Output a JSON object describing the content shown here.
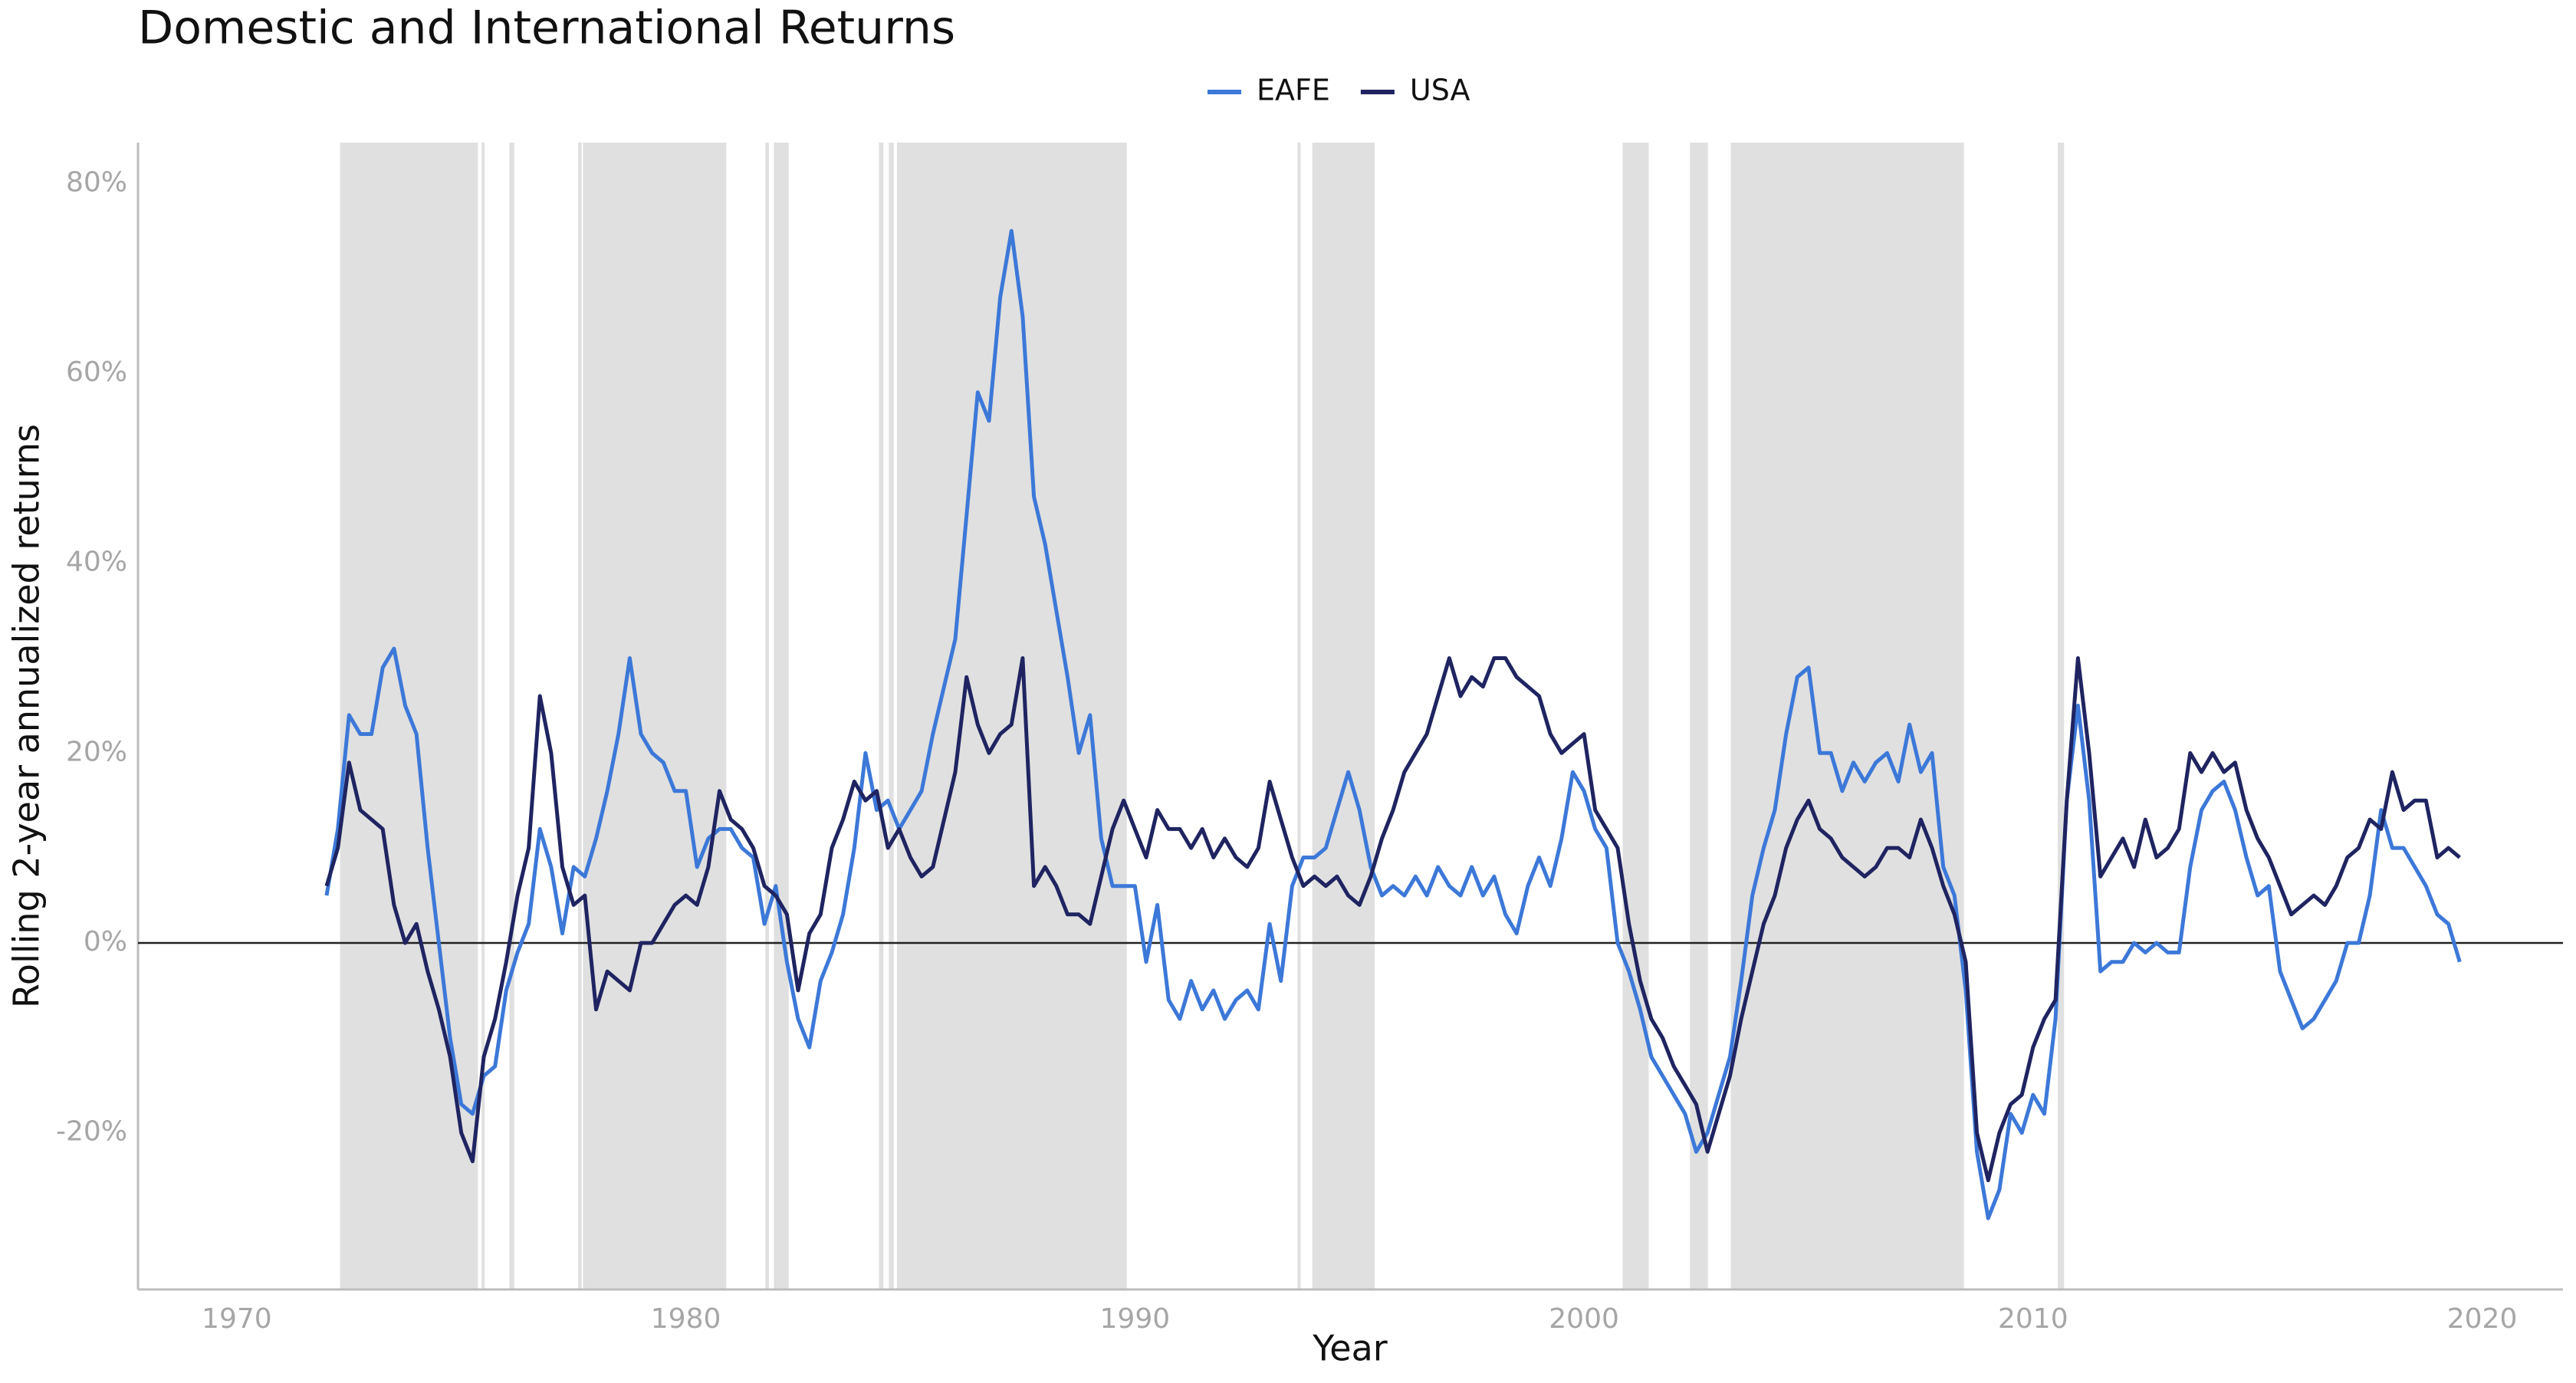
{
  "chart_data": {
    "type": "line",
    "title": "Domestic and International Returns",
    "x_label": "Year",
    "y_label": "Rolling 2-year annualized returns",
    "xlim": [
      1967.8,
      2021.8
    ],
    "xticks": [
      1970,
      1980,
      1990,
      2000,
      2010,
      2020
    ],
    "ylim": [
      -36.5,
      84.3
    ],
    "yticks": [
      {
        "value": -20,
        "label": "-20%"
      },
      {
        "value": 0,
        "label": "0%"
      },
      {
        "value": 20,
        "label": "20%"
      },
      {
        "value": 40,
        "label": "40%"
      },
      {
        "value": 60,
        "label": "60%"
      },
      {
        "value": 80,
        "label": "80%"
      }
    ],
    "grid": false,
    "legend": "top",
    "reference_line": 0,
    "shaded_color": "#e0e0e0",
    "shaded_periods": [
      [
        1972.3,
        1975.37
      ],
      [
        1975.45,
        1975.52
      ],
      [
        1976.07,
        1976.18
      ],
      [
        1977.6,
        1977.68
      ],
      [
        1977.71,
        1980.9
      ],
      [
        1981.77,
        1981.85
      ],
      [
        1981.96,
        1982.29
      ],
      [
        1984.3,
        1984.4
      ],
      [
        1984.52,
        1984.63
      ],
      [
        1984.7,
        1989.82
      ],
      [
        1993.62,
        1993.69
      ],
      [
        1993.95,
        1995.34
      ],
      [
        2000.86,
        2001.44
      ],
      [
        2002.36,
        2002.76
      ],
      [
        2003.27,
        2008.46
      ],
      [
        2010.55,
        2010.69
      ]
    ],
    "x": [
      1972.0,
      1972.25,
      1972.5,
      1972.75,
      1973.0,
      1973.25,
      1973.5,
      1973.75,
      1974.0,
      1974.25,
      1974.5,
      1974.75,
      1975.0,
      1975.25,
      1975.5,
      1975.75,
      1976.0,
      1976.25,
      1976.5,
      1976.75,
      1977.0,
      1977.25,
      1977.5,
      1977.75,
      1978.0,
      1978.25,
      1978.5,
      1978.75,
      1979.0,
      1979.25,
      1979.5,
      1979.75,
      1980.0,
      1980.25,
      1980.5,
      1980.75,
      1981.0,
      1981.25,
      1981.5,
      1981.75,
      1982.0,
      1982.25,
      1982.5,
      1982.75,
      1983.0,
      1983.25,
      1983.5,
      1983.75,
      1984.0,
      1984.25,
      1984.5,
      1984.75,
      1985.0,
      1985.25,
      1985.5,
      1985.75,
      1986.0,
      1986.25,
      1986.5,
      1986.75,
      1987.0,
      1987.25,
      1987.5,
      1987.75,
      1988.0,
      1988.25,
      1988.5,
      1988.75,
      1989.0,
      1989.25,
      1989.5,
      1989.75,
      1990.0,
      1990.25,
      1990.5,
      1990.75,
      1991.0,
      1991.25,
      1991.5,
      1991.75,
      1992.0,
      1992.25,
      1992.5,
      1992.75,
      1993.0,
      1993.25,
      1993.5,
      1993.75,
      1994.0,
      1994.25,
      1994.5,
      1994.75,
      1995.0,
      1995.25,
      1995.5,
      1995.75,
      1996.0,
      1996.25,
      1996.5,
      1996.75,
      1997.0,
      1997.25,
      1997.5,
      1997.75,
      1998.0,
      1998.25,
      1998.5,
      1998.75,
      1999.0,
      1999.25,
      1999.5,
      1999.75,
      2000.0,
      2000.25,
      2000.5,
      2000.75,
      2001.0,
      2001.25,
      2001.5,
      2001.75,
      2002.0,
      2002.25,
      2002.5,
      2002.75,
      2003.0,
      2003.25,
      2003.5,
      2003.75,
      2004.0,
      2004.25,
      2004.5,
      2004.75,
      2005.0,
      2005.25,
      2005.5,
      2005.75,
      2006.0,
      2006.25,
      2006.5,
      2006.75,
      2007.0,
      2007.25,
      2007.5,
      2007.75,
      2008.0,
      2008.25,
      2008.5,
      2008.75,
      2009.0,
      2009.25,
      2009.5,
      2009.75,
      2010.0,
      2010.25,
      2010.5,
      2010.75,
      2011.0,
      2011.25,
      2011.5,
      2011.75,
      2012.0,
      2012.25,
      2012.5,
      2012.75,
      2013.0,
      2013.25,
      2013.5,
      2013.75,
      2014.0,
      2014.25,
      2014.5,
      2014.75,
      2015.0,
      2015.25,
      2015.5,
      2015.75,
      2016.0,
      2016.25,
      2016.5,
      2016.75,
      2017.0,
      2017.25,
      2017.5,
      2017.75,
      2018.0,
      2018.25,
      2018.5,
      2018.75,
      2019.0,
      2019.25,
      2019.5
    ],
    "series": [
      {
        "name": "EAFE",
        "color": "#3c78d8",
        "values": [
          5,
          12,
          24,
          22,
          22,
          29,
          31,
          25,
          22,
          10,
          0,
          -10,
          -17,
          -18,
          -14,
          -13,
          -5,
          -1,
          2,
          12,
          8,
          1,
          8,
          7,
          11,
          16,
          22,
          30,
          22,
          20,
          19,
          16,
          16,
          8,
          11,
          12,
          12,
          10,
          9,
          2,
          6,
          -2,
          -8,
          -11,
          -4,
          -1,
          3,
          10,
          20,
          14,
          15,
          12,
          14,
          16,
          22,
          27,
          32,
          45,
          58,
          55,
          68,
          75,
          66,
          47,
          42,
          35,
          28,
          20,
          24,
          11,
          6,
          6,
          6,
          -2,
          4,
          -6,
          -8,
          -4,
          -7,
          -5,
          -8,
          -6,
          -5,
          -7,
          2,
          -4,
          6,
          9,
          9,
          10,
          14,
          18,
          14,
          8,
          5,
          6,
          5,
          7,
          5,
          8,
          6,
          5,
          8,
          5,
          7,
          3,
          1,
          6,
          9,
          6,
          11,
          18,
          16,
          12,
          10,
          0,
          -3,
          -7,
          -12,
          -14,
          -16,
          -18,
          -22,
          -20,
          -16,
          -12,
          -4,
          5,
          10,
          14,
          22,
          28,
          29,
          20,
          20,
          16,
          19,
          17,
          19,
          20,
          17,
          23,
          18,
          20,
          8,
          5,
          -5,
          -22,
          -29,
          -26,
          -18,
          -20,
          -16,
          -18,
          -8,
          15,
          25,
          15,
          -3,
          -2,
          -2,
          0,
          -1,
          0,
          -1,
          -1,
          8,
          14,
          16,
          17,
          14,
          9,
          5,
          6,
          -3,
          -6,
          -9,
          -8,
          -6,
          -4,
          0,
          0,
          5,
          14,
          10,
          10,
          8,
          6,
          3,
          2,
          -2
        ]
      },
      {
        "name": "USA",
        "color": "#1f2461",
        "values": [
          6,
          10,
          19,
          14,
          13,
          12,
          4,
          0,
          2,
          -3,
          -7,
          -12,
          -20,
          -23,
          -12,
          -8,
          -2,
          5,
          10,
          26,
          20,
          8,
          4,
          5,
          -7,
          -3,
          -4,
          -5,
          0,
          0,
          2,
          4,
          5,
          4,
          8,
          16,
          13,
          12,
          10,
          6,
          5,
          3,
          -5,
          1,
          3,
          10,
          13,
          17,
          15,
          16,
          10,
          12,
          9,
          7,
          8,
          13,
          18,
          28,
          23,
          20,
          22,
          23,
          30,
          6,
          8,
          6,
          3,
          3,
          2,
          7,
          12,
          15,
          12,
          9,
          14,
          12,
          12,
          10,
          12,
          9,
          11,
          9,
          8,
          10,
          17,
          13,
          9,
          6,
          7,
          6,
          7,
          5,
          4,
          7,
          11,
          14,
          18,
          20,
          22,
          26,
          30,
          26,
          28,
          27,
          30,
          30,
          28,
          27,
          26,
          22,
          20,
          21,
          22,
          14,
          12,
          10,
          2,
          -4,
          -8,
          -10,
          -13,
          -15,
          -17,
          -22,
          -18,
          -14,
          -8,
          -3,
          2,
          5,
          10,
          13,
          15,
          12,
          11,
          9,
          8,
          7,
          8,
          10,
          10,
          9,
          13,
          10,
          6,
          3,
          -2,
          -20,
          -25,
          -20,
          -17,
          -16,
          -11,
          -8,
          -6,
          15,
          30,
          20,
          7,
          9,
          11,
          8,
          13,
          9,
          10,
          12,
          20,
          18,
          20,
          18,
          19,
          14,
          11,
          9,
          6,
          3,
          4,
          5,
          4,
          6,
          9,
          10,
          13,
          12,
          18,
          14,
          15,
          15,
          9,
          10,
          9
        ]
      }
    ]
  }
}
